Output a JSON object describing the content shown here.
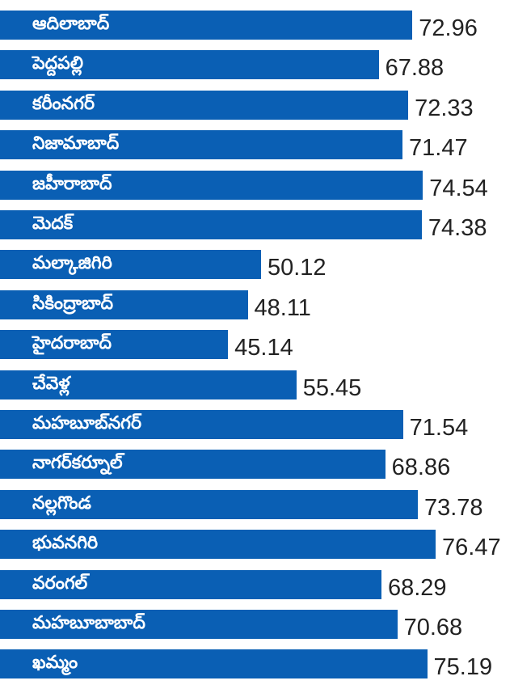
{
  "chart_data": {
    "type": "bar",
    "orientation": "horizontal",
    "title": "",
    "xlabel": "",
    "ylabel": "",
    "bar_color": "#0a5fb4",
    "categories": [
      "ఆదిలాబాద్",
      "పెద్దపల్లి",
      "కరీంనగర్",
      "నిజామాబాద్",
      "జహీరాబాద్",
      "మెదక్",
      "మల్కాజిగిరి",
      "సికింద్రాబాద్",
      "హైదరాబాద్",
      "చేవెళ్ల",
      "మహబూబ్‌నగర్",
      "నాగర్‌కర్నూల్",
      "నల్లగొండ",
      "భువనగిరి",
      "వరంగల్",
      "మహబూబాబాద్",
      "ఖమ్మం"
    ],
    "values": [
      72.96,
      67.88,
      72.33,
      71.47,
      74.54,
      74.38,
      50.12,
      48.11,
      45.14,
      55.45,
      71.54,
      68.86,
      73.78,
      76.47,
      68.29,
      70.68,
      75.19
    ],
    "value_labels": [
      "72.96",
      "67.88",
      "72.33",
      "71.47",
      "74.54",
      "74.38",
      "50.12",
      "48.11",
      "45.14",
      "55.45",
      "71.54",
      "68.86",
      "73.78",
      "76.47",
      "68.29",
      "70.68",
      "75.19"
    ]
  }
}
